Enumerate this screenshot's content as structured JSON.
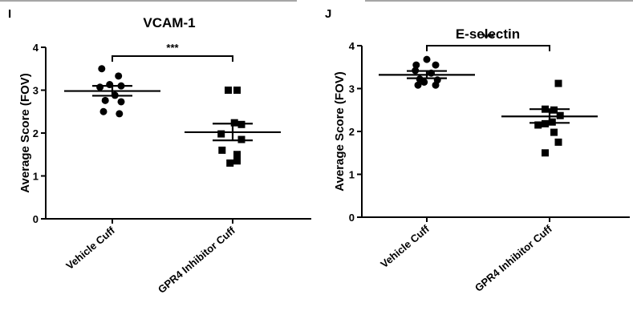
{
  "chart_data": [
    {
      "type": "scatter",
      "panel": "I",
      "title": "VCAM-1",
      "xlabel": "",
      "ylabel": "Average Score (FOV)",
      "ylim": [
        0,
        4
      ],
      "yticks": [
        "0",
        "1",
        "2",
        "3",
        "4"
      ],
      "categories": [
        "Vehicle Cuff",
        "GPR4 Inhibitor Cuff"
      ],
      "series": [
        {
          "marker": "circle",
          "x": [
            -0.12,
            0.07,
            -0.03,
            0.1,
            -0.14,
            0.03,
            -0.08,
            0.1,
            -0.1,
            0.08
          ],
          "values": [
            3.5,
            3.33,
            3.13,
            3.1,
            3.07,
            2.88,
            2.76,
            2.73,
            2.5,
            2.45
          ],
          "mean": 2.98,
          "sem_low": 2.87,
          "sem_high": 3.1
        },
        {
          "marker": "square",
          "x": [
            -0.05,
            0.05,
            0.02,
            0.1,
            -0.13,
            0.1,
            -0.12,
            0.05,
            -0.03,
            0.05
          ],
          "values": [
            3.0,
            3.0,
            2.24,
            2.2,
            1.98,
            1.85,
            1.6,
            1.5,
            1.3,
            1.35
          ],
          "mean": 2.02,
          "sem_low": 1.83,
          "sem_high": 2.22
        }
      ],
      "annotation": "***"
    },
    {
      "type": "scatter",
      "panel": "J",
      "title": "E-selectin",
      "xlabel": "",
      "ylabel": "Average Score (FOV)",
      "ylim": [
        0,
        4
      ],
      "yticks": [
        "0",
        "1",
        "2",
        "3",
        "4"
      ],
      "categories": [
        "Vehicle Cuff",
        "GPR4 Inhibitor Cuff"
      ],
      "series": [
        {
          "marker": "circle",
          "x": [
            -0.12,
            0.0,
            0.1,
            -0.13,
            0.05,
            -0.08,
            -0.03,
            0.12,
            -0.1,
            0.1
          ],
          "values": [
            3.55,
            3.68,
            3.55,
            3.42,
            3.36,
            3.22,
            3.15,
            3.2,
            3.08,
            3.08
          ],
          "mean": 3.32,
          "sem_low": 3.24,
          "sem_high": 3.41
        },
        {
          "marker": "square",
          "x": [
            0.1,
            -0.05,
            0.05,
            0.12,
            0.03,
            -0.13,
            -0.05,
            0.05,
            -0.05,
            0.1
          ],
          "values": [
            3.12,
            2.52,
            2.5,
            2.37,
            2.22,
            2.15,
            2.18,
            1.98,
            1.5,
            1.75
          ],
          "mean": 2.35,
          "sem_low": 2.2,
          "sem_high": 2.52
        }
      ],
      "annotation": "***"
    }
  ]
}
